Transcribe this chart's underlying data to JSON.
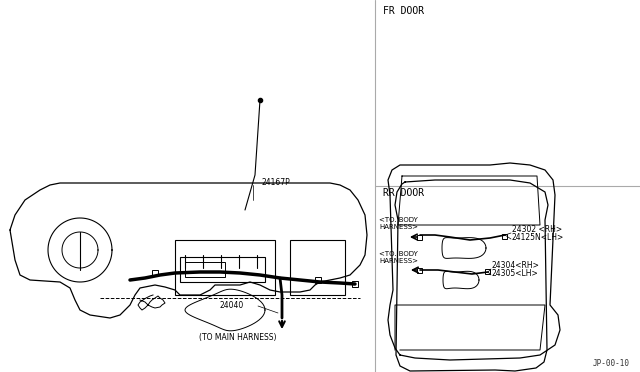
{
  "bg_color": "#ffffff",
  "line_color": "#000000",
  "light_line_color": "#555555",
  "page_code": "JP-00-10",
  "labels": {
    "fr_door": "FR DOOR",
    "rr_door": "RR DOOR",
    "24167P": "24167P",
    "24040": "24040",
    "to_main": "(TO MAIN HARNESS)",
    "to_body_fr": "<TO. BODY\nHARNESS>",
    "to_body_rr": "<TO. BODY\nHARNESS>",
    "24302": "24302 <RH>",
    "24125N": "24125N<LH>",
    "24304": "24304<RH>",
    "24305": "24305<LH>"
  }
}
